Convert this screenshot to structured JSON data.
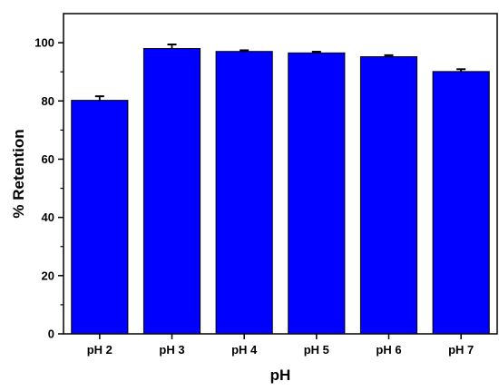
{
  "chart_data": {
    "type": "bar",
    "categories": [
      "pH 2",
      "pH 3",
      "pH 4",
      "pH 5",
      "pH 6",
      "pH 7"
    ],
    "values": [
      80.2,
      98.0,
      97.0,
      96.5,
      95.2,
      90.1
    ],
    "errors": [
      1.4,
      1.4,
      0.4,
      0.4,
      0.5,
      0.8
    ],
    "xlabel": "pH",
    "ylabel": "% Retention",
    "ylim": [
      0,
      110
    ],
    "yticks": [
      0,
      20,
      40,
      60,
      80,
      100
    ],
    "grid": false,
    "bar_color": "#0000ff",
    "edge_color": "#000000"
  }
}
